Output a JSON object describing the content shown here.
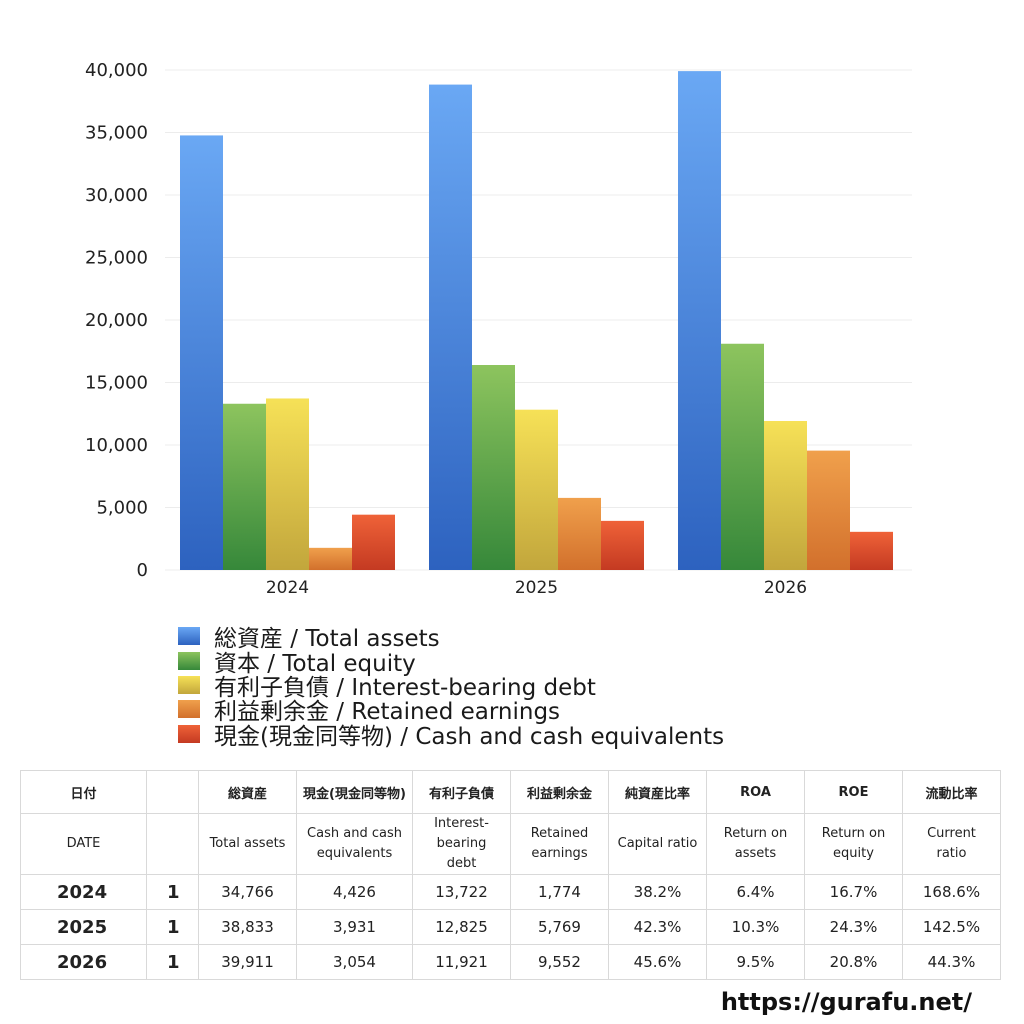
{
  "chart_data": {
    "type": "bar",
    "categories": [
      "2024",
      "2025",
      "2026"
    ],
    "ylim": [
      0,
      40000
    ],
    "yticks": [
      "0",
      "5,000",
      "10,000",
      "15,000",
      "20,000",
      "25,000",
      "30,000",
      "35,000",
      "40,000"
    ],
    "ytick_values": [
      0,
      5000,
      10000,
      15000,
      20000,
      25000,
      30000,
      35000,
      40000
    ],
    "grid": true,
    "legend_position": "bottom",
    "series": [
      {
        "name": "総資産 / Total assets",
        "values": [
          34766,
          38833,
          39911
        ],
        "color_top": "#6aa8f4",
        "color_bottom": "#2d62bf"
      },
      {
        "name": "資本 / Total equity",
        "values": [
          13300,
          16400,
          18100
        ],
        "color_top": "#8dc45e",
        "color_bottom": "#36883a"
      },
      {
        "name": "有利子負債 / Interest-bearing debt",
        "values": [
          13722,
          12825,
          11921
        ],
        "color_top": "#f6e157",
        "color_bottom": "#c2a63c"
      },
      {
        "name": "利益剰余金 / Retained earnings",
        "values": [
          1774,
          5769,
          9552
        ],
        "color_top": "#f0a04c",
        "color_bottom": "#d2702c"
      },
      {
        "name": "現金(現金同等物)  /  Cash and cash equivalents",
        "values": [
          4426,
          3931,
          3054
        ],
        "color_top": "#ef6238",
        "color_bottom": "#c43a22"
      }
    ]
  },
  "table": {
    "header_jp": [
      "日付",
      "",
      "総資産",
      "現金(現金同等物)",
      "有利子負債",
      "利益剰余金",
      "純資産比率",
      "ROA",
      "ROE",
      "流動比率"
    ],
    "header_en": [
      [
        "DATE"
      ],
      [
        ""
      ],
      [
        "Total assets"
      ],
      [
        "Cash and cash",
        "equivalents"
      ],
      [
        "Interest-",
        "bearing",
        "debt"
      ],
      [
        "Retained",
        "earnings"
      ],
      [
        "Capital ratio"
      ],
      [
        "Return on",
        "assets"
      ],
      [
        "Return on",
        "equity"
      ],
      [
        "Current",
        "ratio"
      ]
    ],
    "rows": [
      [
        "2024",
        "1",
        "34,766",
        "4,426",
        "13,722",
        "1,774",
        "38.2%",
        "6.4%",
        "16.7%",
        "168.6%"
      ],
      [
        "2025",
        "1",
        "38,833",
        "3,931",
        "12,825",
        "5,769",
        "42.3%",
        "10.3%",
        "24.3%",
        "142.5%"
      ],
      [
        "2026",
        "1",
        "39,911",
        "3,054",
        "11,921",
        "9,552",
        "45.6%",
        "9.5%",
        "20.8%",
        "44.3%"
      ]
    ]
  },
  "watermark": "https://gurafu.net/"
}
